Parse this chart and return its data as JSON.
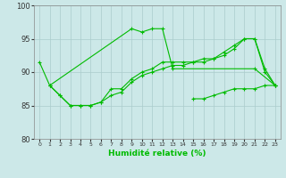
{
  "xlabel": "Humidité relative (%)",
  "xlim": [
    -0.5,
    23.5
  ],
  "ylim": [
    80,
    100
  ],
  "yticks": [
    80,
    85,
    90,
    95,
    100
  ],
  "background_color": "#cce8e8",
  "grid_color": "#aacccc",
  "line_color": "#00bb00",
  "lines": [
    {
      "x": [
        0,
        1,
        9,
        10,
        11,
        12,
        13,
        21,
        23
      ],
      "y": [
        91.5,
        88,
        96.5,
        96.0,
        96.5,
        96.5,
        90.5,
        90.5,
        88.0
      ]
    },
    {
      "x": [
        1,
        2,
        3,
        4,
        5,
        6,
        7,
        8,
        9,
        10,
        11,
        12,
        13,
        14,
        15,
        16,
        17,
        18,
        19,
        20,
        21,
        22,
        23
      ],
      "y": [
        88.0,
        86.5,
        85.0,
        85.0,
        85.0,
        85.5,
        87.5,
        87.5,
        89.0,
        90.0,
        90.5,
        91.5,
        91.5,
        91.5,
        91.5,
        92.0,
        92.0,
        93.0,
        94.0,
        95.0,
        95.0,
        90.5,
        88.0
      ]
    },
    {
      "x": [
        1,
        2,
        3,
        4,
        5,
        6,
        7,
        8,
        9,
        10,
        11,
        12,
        13,
        14,
        15,
        16,
        17,
        18,
        19,
        20,
        21,
        22,
        23
      ],
      "y": [
        88.0,
        86.5,
        85.0,
        85.0,
        85.0,
        85.5,
        86.5,
        87.0,
        88.5,
        89.5,
        90.0,
        90.5,
        91.0,
        91.0,
        91.5,
        91.5,
        92.0,
        92.5,
        93.5,
        95.0,
        95.0,
        90.0,
        88.0
      ]
    },
    {
      "x": [
        15,
        16,
        17,
        18,
        19,
        20,
        21,
        22,
        23
      ],
      "y": [
        86.0,
        86.0,
        86.5,
        87.0,
        87.5,
        87.5,
        87.5,
        88.0,
        88.0
      ]
    }
  ]
}
